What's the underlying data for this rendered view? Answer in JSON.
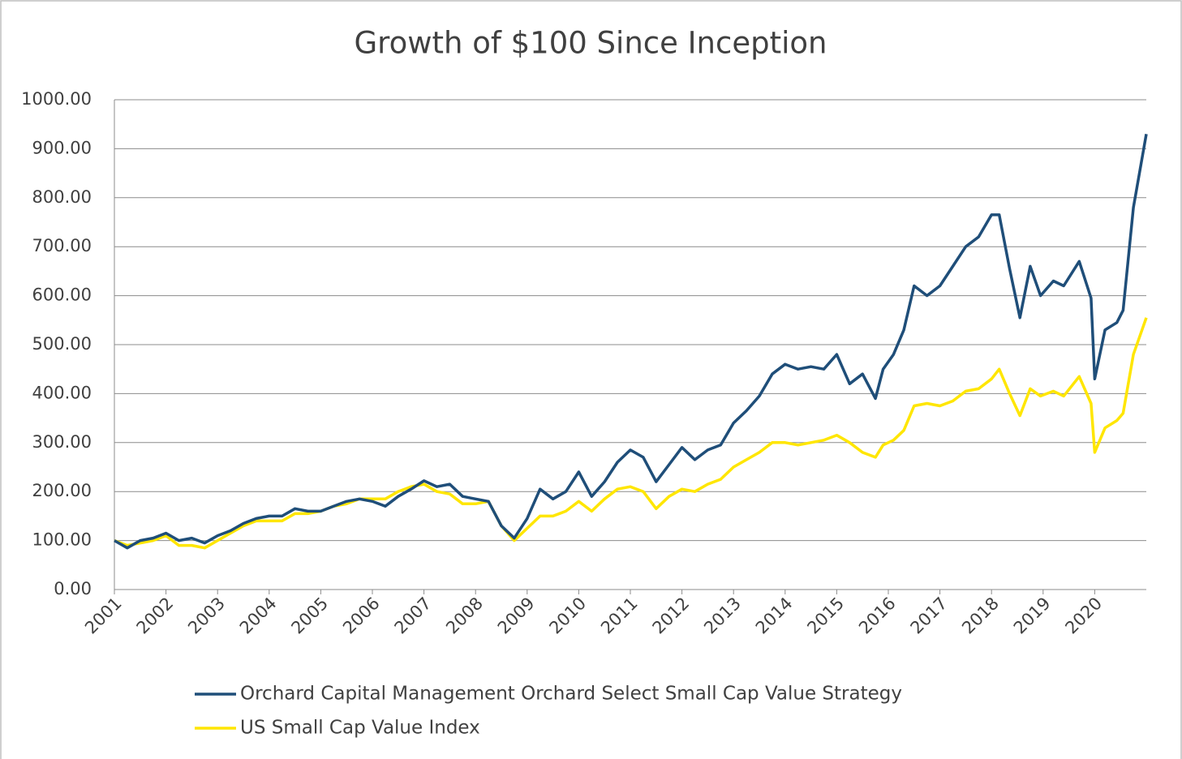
{
  "chart_data": {
    "type": "line",
    "title": "Growth of $100 Since Inception",
    "x": [
      2001,
      2001.25,
      2001.5,
      2001.75,
      2002,
      2002.25,
      2002.5,
      2002.75,
      2003,
      2003.25,
      2003.5,
      2003.75,
      2004,
      2004.25,
      2004.5,
      2004.75,
      2005,
      2005.25,
      2005.5,
      2005.75,
      2006,
      2006.25,
      2006.5,
      2006.75,
      2007,
      2007.25,
      2007.5,
      2007.75,
      2008,
      2008.25,
      2008.5,
      2008.75,
      2009,
      2009.25,
      2009.5,
      2009.75,
      2010,
      2010.25,
      2010.5,
      2010.75,
      2011,
      2011.25,
      2011.5,
      2011.75,
      2012,
      2012.25,
      2012.5,
      2012.75,
      2013,
      2013.25,
      2013.5,
      2013.75,
      2014,
      2014.25,
      2014.5,
      2014.75,
      2015,
      2015.25,
      2015.5,
      2015.75,
      2015.9,
      2016.1,
      2016.3,
      2016.5,
      2016.75,
      2017,
      2017.25,
      2017.5,
      2017.75,
      2018,
      2018.15,
      2018.35,
      2018.55,
      2018.75,
      2018.95,
      2019.2,
      2019.4,
      2019.7,
      2019.93,
      2020,
      2020.2,
      2020.43,
      2020.55,
      2020.75,
      2021
    ],
    "series": [
      {
        "name": "Orchard Capital Management Orchard Select Small Cap Value Strategy",
        "color": "#1f4e79",
        "values": [
          100,
          85,
          100,
          105,
          115,
          100,
          105,
          95,
          110,
          120,
          135,
          145,
          150,
          150,
          165,
          160,
          160,
          170,
          180,
          185,
          180,
          170,
          190,
          205,
          222,
          210,
          215,
          190,
          185,
          180,
          130,
          105,
          145,
          205,
          185,
          200,
          240,
          190,
          220,
          260,
          285,
          270,
          220,
          255,
          290,
          265,
          285,
          295,
          340,
          365,
          395,
          440,
          460,
          450,
          455,
          450,
          480,
          420,
          440,
          390,
          450,
          480,
          530,
          620,
          600,
          620,
          660,
          700,
          720,
          765,
          765,
          655,
          555,
          660,
          600,
          630,
          620,
          670,
          595,
          430,
          530,
          545,
          570,
          780,
          930
        ]
      },
      {
        "name": "US Small Cap Value Index",
        "color": "#ffe600",
        "values": [
          100,
          90,
          95,
          100,
          110,
          90,
          90,
          85,
          100,
          115,
          130,
          140,
          140,
          140,
          155,
          155,
          160,
          170,
          175,
          185,
          185,
          185,
          200,
          210,
          215,
          200,
          195,
          175,
          175,
          180,
          130,
          100,
          125,
          150,
          150,
          160,
          180,
          160,
          185,
          205,
          210,
          200,
          165,
          190,
          205,
          200,
          215,
          225,
          250,
          265,
          280,
          300,
          300,
          295,
          300,
          305,
          315,
          300,
          280,
          270,
          295,
          305,
          325,
          375,
          380,
          375,
          385,
          405,
          410,
          430,
          450,
          400,
          355,
          410,
          395,
          405,
          395,
          435,
          380,
          280,
          330,
          345,
          360,
          480,
          555
        ]
      }
    ],
    "xlim": [
      2001,
      2021
    ],
    "xticks": [
      2001,
      2002,
      2003,
      2004,
      2005,
      2006,
      2007,
      2008,
      2009,
      2010,
      2011,
      2012,
      2013,
      2014,
      2015,
      2016,
      2017,
      2018,
      2019,
      2020
    ],
    "ylim": [
      0,
      1000
    ],
    "yticks": [
      {
        "value": 0,
        "label": "0.00"
      },
      {
        "value": 100,
        "label": "100.00"
      },
      {
        "value": 200,
        "label": "200.00"
      },
      {
        "value": 300,
        "label": "300.00"
      },
      {
        "value": 400,
        "label": "400.00"
      },
      {
        "value": 500,
        "label": "500.00"
      },
      {
        "value": 600,
        "label": "600.00"
      },
      {
        "value": 700,
        "label": "700.00"
      },
      {
        "value": 800,
        "label": "800.00"
      },
      {
        "value": 900,
        "label": "900.00"
      },
      {
        "value": 1000,
        "label": "1000.00"
      }
    ],
    "grid": true
  }
}
